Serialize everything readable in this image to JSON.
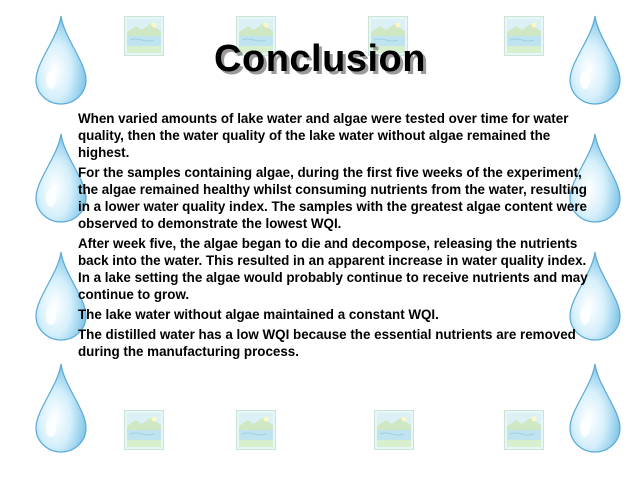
{
  "slide": {
    "title": "Conclusion",
    "paragraphs": [
      "When varied amounts of lake water and algae were tested over time for water quality, then the water quality of the lake water without algae remained the highest.",
      "For the samples containing algae, during the first five weeks of the experiment, the algae remained healthy whilst consuming nutrients from the water, resulting in a lower water quality index. The samples with the greatest algae content were observed to demonstrate the lowest WQI.",
      "After week five, the algae began to die and decompose, releasing the nutrients back into the water. This resulted in an apparent increase in water quality index. In a lake setting the algae would probably continue to receive nutrients and may continue to grow.",
      "The lake water without algae maintained a constant WQI.",
      "The distilled water has a low WQI because the essential nutrients are removed during the manufacturing process."
    ]
  },
  "background": {
    "motif": "water-drop-icon",
    "tile_motif": "lake-landscape-icon",
    "colors": {
      "drop_light": "#ffffff",
      "drop_mid": "#bfe6f7",
      "drop_dark": "#5fb4e0",
      "tile_bg": "#d9f0f7",
      "tile_frame": "#c7e3bf",
      "text": "#000000",
      "title_shadow": "#9a9a9a"
    }
  }
}
